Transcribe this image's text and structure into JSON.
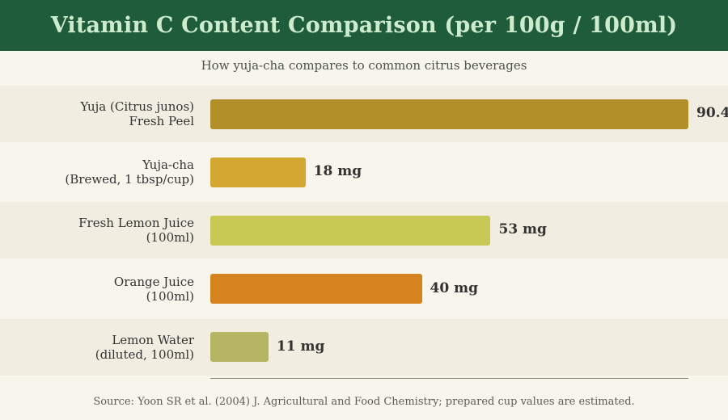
{
  "header": {
    "title": "Vitamin C Content Comparison (per 100g / 100ml)",
    "subtitle": "How yuja-cha compares to common citrus beverages"
  },
  "footer": {
    "source": "Source: Yoon SR et al. (2004) J. Agricultural and Food Chemistry; prepared cup values are estimated."
  },
  "chart_data": {
    "type": "bar",
    "orientation": "horizontal",
    "title": "Vitamin C Content Comparison (per 100g / 100ml)",
    "subtitle": "How yuja-cha compares to common citrus beverages",
    "xlim": [
      0,
      90.4
    ],
    "unit": "mg",
    "categories": [
      [
        "Yuja (Citrus junos)",
        "Fresh Peel"
      ],
      [
        "Yuja-cha",
        "(Brewed, 1 tbsp/cup)"
      ],
      [
        "Fresh Lemon Juice",
        "(100ml)"
      ],
      [
        "Orange Juice",
        "(100ml)"
      ],
      [
        "Lemon Water",
        "(diluted, 100ml)"
      ]
    ],
    "values": [
      90.4,
      18,
      53,
      40,
      11
    ],
    "value_labels": [
      "90.4",
      "18 mg",
      "53 mg",
      "40 mg",
      "11 mg"
    ],
    "colors": [
      "#b38f2a",
      "#d4a733",
      "#c8c955",
      "#d4831f",
      "#b5b563"
    ]
  }
}
